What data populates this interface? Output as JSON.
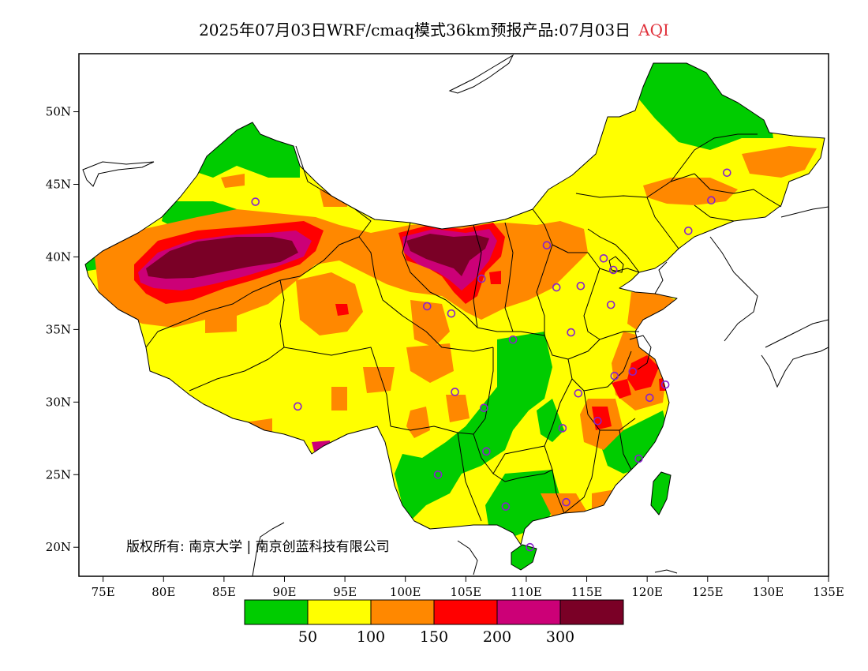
{
  "header": {
    "title": "2025年07月03日WRF/cmaq模式36km预报产品:07月03日",
    "variable": "AQI"
  },
  "map": {
    "lon_range": [
      73,
      135
    ],
    "lat_range": [
      18,
      54
    ],
    "lon_ticks": [
      "75E",
      "80E",
      "85E",
      "90E",
      "95E",
      "100E",
      "105E",
      "110E",
      "115E",
      "120E",
      "125E",
      "130E",
      "135E"
    ],
    "lat_ticks": [
      "20N",
      "25N",
      "30N",
      "35N",
      "40N",
      "45N",
      "50N"
    ],
    "copyright": "版权所有: 南京大学 | 南京创蓝科技有限公司"
  },
  "legend": {
    "colors": [
      "#00cc00",
      "#ffff00",
      "#ff8800",
      "#ff0000",
      "#cc0077",
      "#7a0026"
    ],
    "labels": [
      "50",
      "100",
      "150",
      "200",
      "300"
    ]
  },
  "colors": {
    "station_marker": "#8822cc",
    "boundary": "#000000",
    "aqi_title": "#e0303a"
  },
  "stations": [
    [
      87.6,
      43.8
    ],
    [
      91.1,
      29.7
    ],
    [
      101.8,
      36.6
    ],
    [
      103.8,
      36.1
    ],
    [
      106.3,
      38.5
    ],
    [
      111.7,
      40.8
    ],
    [
      112.5,
      37.9
    ],
    [
      114.5,
      38.0
    ],
    [
      116.4,
      39.9
    ],
    [
      117.2,
      39.1
    ],
    [
      117.0,
      36.7
    ],
    [
      113.7,
      34.8
    ],
    [
      108.9,
      34.3
    ],
    [
      104.1,
      30.7
    ],
    [
      106.5,
      29.6
    ],
    [
      106.7,
      26.6
    ],
    [
      102.7,
      25.0
    ],
    [
      108.3,
      22.8
    ],
    [
      110.3,
      20.0
    ],
    [
      113.3,
      23.1
    ],
    [
      113.0,
      28.2
    ],
    [
      114.3,
      30.6
    ],
    [
      115.9,
      28.7
    ],
    [
      117.3,
      31.8
    ],
    [
      118.8,
      32.1
    ],
    [
      120.2,
      30.3
    ],
    [
      121.5,
      31.2
    ],
    [
      119.3,
      26.1
    ],
    [
      123.4,
      41.8
    ],
    [
      125.3,
      43.9
    ],
    [
      126.6,
      45.8
    ]
  ]
}
